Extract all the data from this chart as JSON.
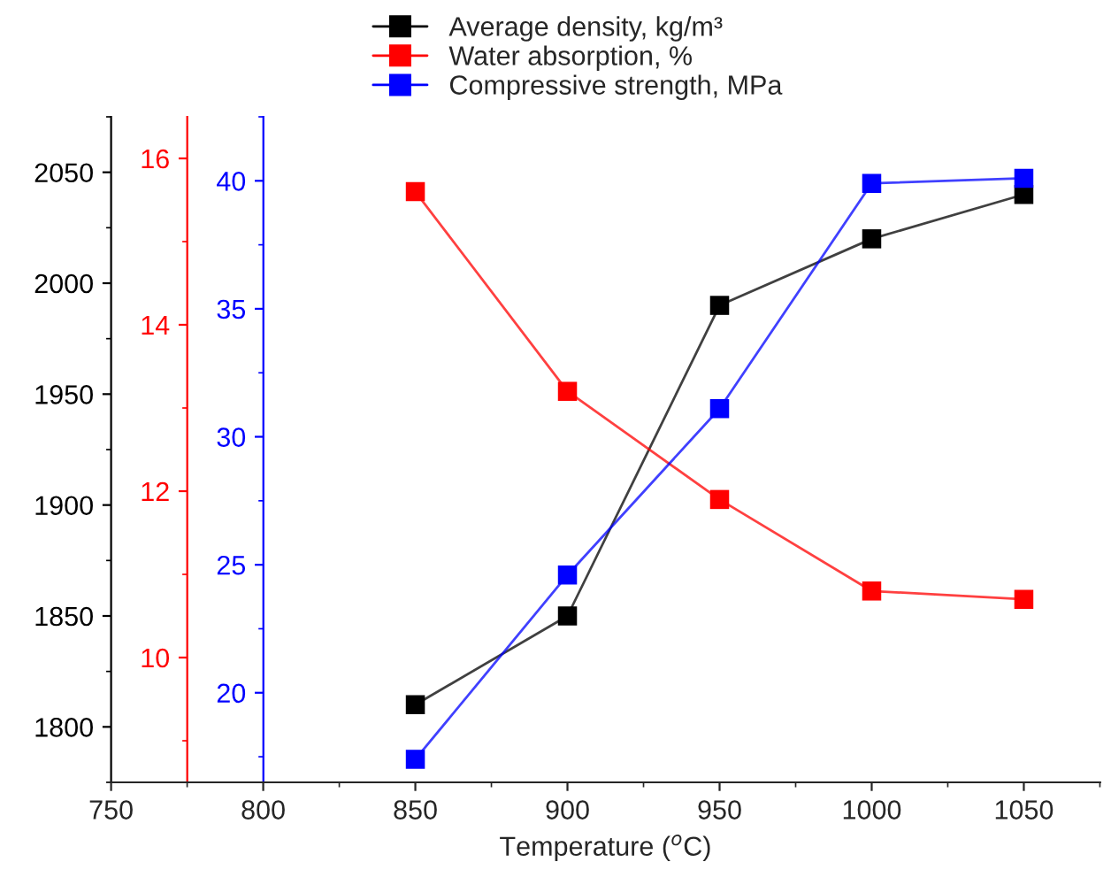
{
  "chart_data": {
    "type": "line",
    "xlabel": "Temperature ($^{o}$C)",
    "x": [
      850,
      900,
      950,
      1000,
      1050
    ],
    "xlim": [
      750,
      1075
    ],
    "xticks": [
      750,
      800,
      850,
      900,
      950,
      1000,
      1050
    ],
    "ylim": [
      1775,
      2075
    ],
    "yticks": [
      1800,
      1850,
      1900,
      1950,
      2000,
      2050
    ],
    "y2lim": [
      8.5,
      16.5
    ],
    "y2ticks": [
      10,
      12,
      14,
      16
    ],
    "y3lim": [
      16.5,
      42.5
    ],
    "y3ticks": [
      20,
      25,
      30,
      35,
      40
    ],
    "marker": "square",
    "line_style": "solid",
    "legend": "top",
    "grid": false,
    "series": [
      {
        "name": "Average density, kg/m³",
        "color": "#000000",
        "values": [
          1810,
          1850,
          1990,
          2020,
          2040
        ]
      },
      {
        "name": "Water absorption, %",
        "color": "#ff0000",
        "axis": "y2",
        "values": [
          15.6,
          13.2,
          11.9,
          10.8,
          10.7
        ]
      },
      {
        "name": "Compressive strength, MPa",
        "color": "#0000ff",
        "axis": "y3",
        "values": [
          17.4,
          24.6,
          31.1,
          39.9,
          40.1
        ]
      }
    ]
  }
}
